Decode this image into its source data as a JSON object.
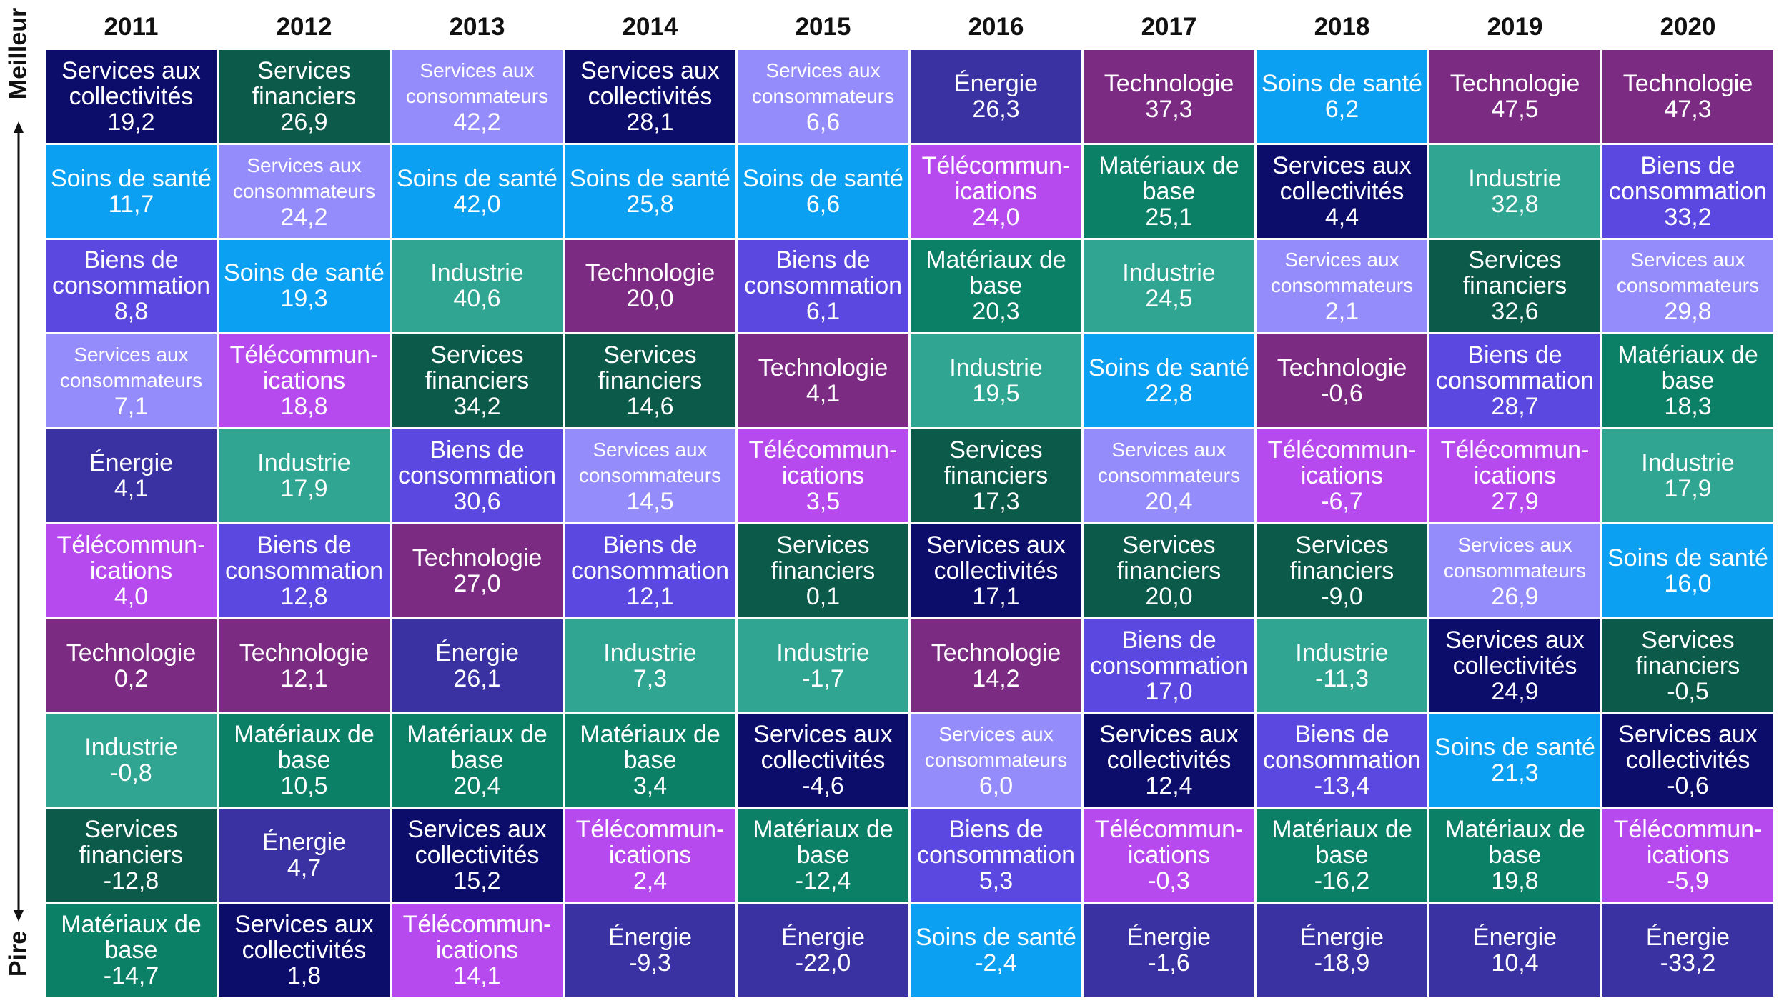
{
  "axis": {
    "best_label": "Meilleur",
    "worst_label": "Pire"
  },
  "colors": {
    "Services aux collectivités": "#0c0c6b",
    "Services financiers": "#0b5a4a",
    "Services aux consommateurs": "#958cfb",
    "Soins de santé": "#0ba0f2",
    "Énergie": "#3a32a3",
    "Technologie": "#7b2b82",
    "Télécommunications": "#b74aef",
    "Matériaux de base": "#0b8066",
    "Industrie": "#2fa592",
    "Biens de consommation": "#5a48e0"
  },
  "chart_data": {
    "type": "table",
    "title": "",
    "years": [
      "2011",
      "2012",
      "2013",
      "2014",
      "2015",
      "2016",
      "2017",
      "2018",
      "2019",
      "2020"
    ],
    "columns": [
      {
        "year": "2011",
        "cells": [
          {
            "sector": "Services aux collectivités",
            "label": "Services aux\ncollectivités",
            "value": "19,2"
          },
          {
            "sector": "Soins de santé",
            "label": "Soins de santé",
            "value": "11,7"
          },
          {
            "sector": "Biens de consommation",
            "label": "Biens de\nconsommation",
            "value": "8,8"
          },
          {
            "sector": "Services aux consommateurs",
            "label": "Services aux\nconsommateurs",
            "value": "7,1"
          },
          {
            "sector": "Énergie",
            "label": "Énergie",
            "value": "4,1"
          },
          {
            "sector": "Télécommunications",
            "label": "Télécommun-\nications",
            "value": "4,0"
          },
          {
            "sector": "Technologie",
            "label": "Technologie",
            "value": "0,2"
          },
          {
            "sector": "Industrie",
            "label": "Industrie",
            "value": "-0,8"
          },
          {
            "sector": "Services financiers",
            "label": "Services\nfinanciers",
            "value": "-12,8"
          },
          {
            "sector": "Matériaux de base",
            "label": "Matériaux de\nbase",
            "value": "-14,7"
          }
        ]
      },
      {
        "year": "2012",
        "cells": [
          {
            "sector": "Services financiers",
            "label": "Services\nfinanciers",
            "value": "26,9"
          },
          {
            "sector": "Services aux consommateurs",
            "label": "Services aux\nconsommateurs",
            "value": "24,2"
          },
          {
            "sector": "Soins de santé",
            "label": "Soins de santé",
            "value": "19,3"
          },
          {
            "sector": "Télécommunications",
            "label": "Télécommun-\nications",
            "value": "18,8"
          },
          {
            "sector": "Industrie",
            "label": "Industrie",
            "value": "17,9"
          },
          {
            "sector": "Biens de consommation",
            "label": "Biens de\nconsommation",
            "value": "12,8"
          },
          {
            "sector": "Technologie",
            "label": "Technologie",
            "value": "12,1"
          },
          {
            "sector": "Matériaux de base",
            "label": "Matériaux de\nbase",
            "value": "10,5"
          },
          {
            "sector": "Énergie",
            "label": "Énergie",
            "value": "4,7"
          },
          {
            "sector": "Services aux collectivités",
            "label": "Services aux\ncollectivités",
            "value": "1,8"
          }
        ]
      },
      {
        "year": "2013",
        "cells": [
          {
            "sector": "Services aux consommateurs",
            "label": "Services aux\nconsommateurs",
            "value": "42,2"
          },
          {
            "sector": "Soins de santé",
            "label": "Soins de santé",
            "value": "42,0"
          },
          {
            "sector": "Industrie",
            "label": "Industrie",
            "value": "40,6"
          },
          {
            "sector": "Services financiers",
            "label": "Services\nfinanciers",
            "value": "34,2"
          },
          {
            "sector": "Biens de consommation",
            "label": "Biens de\nconsommation",
            "value": "30,6"
          },
          {
            "sector": "Technologie",
            "label": "Technologie",
            "value": "27,0"
          },
          {
            "sector": "Énergie",
            "label": "Énergie",
            "value": "26,1"
          },
          {
            "sector": "Matériaux de base",
            "label": "Matériaux de\nbase",
            "value": "20,4"
          },
          {
            "sector": "Services aux collectivités",
            "label": "Services aux\ncollectivités",
            "value": "15,2"
          },
          {
            "sector": "Télécommunications",
            "label": "Télécommun-\nications",
            "value": "14,1"
          }
        ]
      },
      {
        "year": "2014",
        "cells": [
          {
            "sector": "Services aux collectivités",
            "label": "Services aux\ncollectivités",
            "value": "28,1"
          },
          {
            "sector": "Soins de santé",
            "label": "Soins de santé",
            "value": "25,8"
          },
          {
            "sector": "Technologie",
            "label": "Technologie",
            "value": "20,0"
          },
          {
            "sector": "Services financiers",
            "label": "Services\nfinanciers",
            "value": "14,6"
          },
          {
            "sector": "Services aux consommateurs",
            "label": "Services aux\nconsommateurs",
            "value": "14,5"
          },
          {
            "sector": "Biens de consommation",
            "label": "Biens de\nconsommation",
            "value": "12,1"
          },
          {
            "sector": "Industrie",
            "label": "Industrie",
            "value": "7,3"
          },
          {
            "sector": "Matériaux de base",
            "label": "Matériaux de\nbase",
            "value": "3,4"
          },
          {
            "sector": "Télécommunications",
            "label": "Télécommun-\nications",
            "value": "2,4"
          },
          {
            "sector": "Énergie",
            "label": "Énergie",
            "value": "-9,3"
          }
        ]
      },
      {
        "year": "2015",
        "cells": [
          {
            "sector": "Services aux consommateurs",
            "label": "Services aux\nconsommateurs",
            "value": "6,6"
          },
          {
            "sector": "Soins de santé",
            "label": "Soins de santé",
            "value": "6,6"
          },
          {
            "sector": "Biens de consommation",
            "label": "Biens de\nconsommation",
            "value": "6,1"
          },
          {
            "sector": "Technologie",
            "label": "Technologie",
            "value": "4,1"
          },
          {
            "sector": "Télécommunications",
            "label": "Télécommun-\nications",
            "value": "3,5"
          },
          {
            "sector": "Services financiers",
            "label": "Services\nfinanciers",
            "value": "0,1"
          },
          {
            "sector": "Industrie",
            "label": "Industrie",
            "value": "-1,7"
          },
          {
            "sector": "Services aux collectivités",
            "label": "Services aux\ncollectivités",
            "value": "-4,6"
          },
          {
            "sector": "Matériaux de base",
            "label": "Matériaux de\nbase",
            "value": "-12,4"
          },
          {
            "sector": "Énergie",
            "label": "Énergie",
            "value": "-22,0"
          }
        ]
      },
      {
        "year": "2016",
        "cells": [
          {
            "sector": "Énergie",
            "label": "Énergie",
            "value": "26,3"
          },
          {
            "sector": "Télécommunications",
            "label": "Télécommun-\nications",
            "value": "24,0"
          },
          {
            "sector": "Matériaux de base",
            "label": "Matériaux de\nbase",
            "value": "20,3"
          },
          {
            "sector": "Industrie",
            "label": "Industrie",
            "value": "19,5"
          },
          {
            "sector": "Services financiers",
            "label": "Services\nfinanciers",
            "value": "17,3"
          },
          {
            "sector": "Services aux collectivités",
            "label": "Services aux\ncollectivités",
            "value": "17,1"
          },
          {
            "sector": "Technologie",
            "label": "Technologie",
            "value": "14,2"
          },
          {
            "sector": "Services aux consommateurs",
            "label": "Services aux\nconsommateurs",
            "value": "6,0"
          },
          {
            "sector": "Biens de consommation",
            "label": "Biens de\nconsommation",
            "value": "5,3"
          },
          {
            "sector": "Soins de santé",
            "label": "Soins de santé",
            "value": "-2,4"
          }
        ]
      },
      {
        "year": "2017",
        "cells": [
          {
            "sector": "Technologie",
            "label": "Technologie",
            "value": "37,3"
          },
          {
            "sector": "Matériaux de base",
            "label": "Matériaux de\nbase",
            "value": "25,1"
          },
          {
            "sector": "Industrie",
            "label": "Industrie",
            "value": "24,5"
          },
          {
            "sector": "Soins de santé",
            "label": "Soins de santé",
            "value": "22,8"
          },
          {
            "sector": "Services aux consommateurs",
            "label": "Services aux\nconsommateurs",
            "value": "20,4"
          },
          {
            "sector": "Services financiers",
            "label": "Services\nfinanciers",
            "value": "20,0"
          },
          {
            "sector": "Biens de consommation",
            "label": "Biens de\nconsommation",
            "value": "17,0"
          },
          {
            "sector": "Services aux collectivités",
            "label": "Services aux\ncollectivités",
            "value": "12,4"
          },
          {
            "sector": "Télécommunications",
            "label": "Télécommun-\nications",
            "value": "-0,3"
          },
          {
            "sector": "Énergie",
            "label": "Énergie",
            "value": "-1,6"
          }
        ]
      },
      {
        "year": "2018",
        "cells": [
          {
            "sector": "Soins de santé",
            "label": "Soins de santé",
            "value": "6,2"
          },
          {
            "sector": "Services aux collectivités",
            "label": "Services aux\ncollectivités",
            "value": "4,4"
          },
          {
            "sector": "Services aux consommateurs",
            "label": "Services aux\nconsommateurs",
            "value": "2,1"
          },
          {
            "sector": "Technologie",
            "label": "Technologie",
            "value": "-0,6"
          },
          {
            "sector": "Télécommunications",
            "label": "Télécommun-\nications",
            "value": "-6,7"
          },
          {
            "sector": "Services financiers",
            "label": "Services\nfinanciers",
            "value": "-9,0"
          },
          {
            "sector": "Industrie",
            "label": "Industrie",
            "value": "-11,3"
          },
          {
            "sector": "Biens de consommation",
            "label": "Biens de\nconsommation",
            "value": "-13,4"
          },
          {
            "sector": "Matériaux de base",
            "label": "Matériaux de\nbase",
            "value": "-16,2"
          },
          {
            "sector": "Énergie",
            "label": "Énergie",
            "value": "-18,9"
          }
        ]
      },
      {
        "year": "2019",
        "cells": [
          {
            "sector": "Technologie",
            "label": "Technologie",
            "value": "47,5"
          },
          {
            "sector": "Industrie",
            "label": "Industrie",
            "value": "32,8"
          },
          {
            "sector": "Services financiers",
            "label": "Services\nfinanciers",
            "value": "32,6"
          },
          {
            "sector": "Biens de consommation",
            "label": "Biens de\nconsommation",
            "value": "28,7"
          },
          {
            "sector": "Télécommunications",
            "label": "Télécommun-\nications",
            "value": "27,9"
          },
          {
            "sector": "Services aux consommateurs",
            "label": "Services aux\nconsommateurs",
            "value": "26,9"
          },
          {
            "sector": "Services aux collectivités",
            "label": "Services aux\ncollectivités",
            "value": "24,9"
          },
          {
            "sector": "Soins de santé",
            "label": "Soins de santé",
            "value": "21,3"
          },
          {
            "sector": "Matériaux de base",
            "label": "Matériaux de\nbase",
            "value": "19,8"
          },
          {
            "sector": "Énergie",
            "label": "Énergie",
            "value": "10,4"
          }
        ]
      },
      {
        "year": "2020",
        "cells": [
          {
            "sector": "Technologie",
            "label": "Technologie",
            "value": "47,3"
          },
          {
            "sector": "Biens de consommation",
            "label": "Biens de\nconsommation",
            "value": "33,2"
          },
          {
            "sector": "Services aux consommateurs",
            "label": "Services aux\nconsommateurs",
            "value": "29,8"
          },
          {
            "sector": "Matériaux de base",
            "label": "Matériaux de\nbase",
            "value": "18,3"
          },
          {
            "sector": "Industrie",
            "label": "Industrie",
            "value": "17,9"
          },
          {
            "sector": "Soins de santé",
            "label": "Soins de santé",
            "value": "16,0"
          },
          {
            "sector": "Services financiers",
            "label": "Services\nfinanciers",
            "value": "-0,5"
          },
          {
            "sector": "Services aux collectivités",
            "label": "Services aux\ncollectivités",
            "value": "-0,6"
          },
          {
            "sector": "Télécommunications",
            "label": "Télécommun-\nications",
            "value": "-5,9"
          },
          {
            "sector": "Énergie",
            "label": "Énergie",
            "value": "-33,2"
          }
        ]
      }
    ]
  }
}
